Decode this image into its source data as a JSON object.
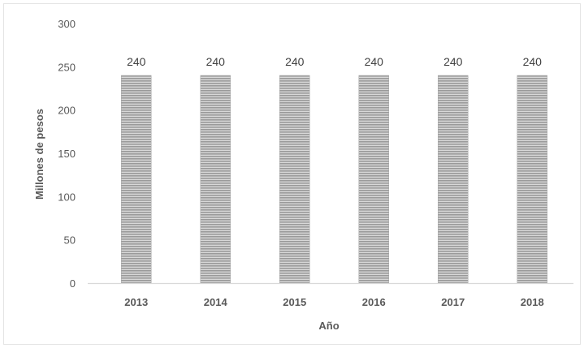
{
  "chart_data": {
    "type": "bar",
    "title": "",
    "xlabel": "Año",
    "ylabel": "Millones de pesos",
    "categories": [
      "2013",
      "2014",
      "2015",
      "2016",
      "2017",
      "2018"
    ],
    "values": [
      240,
      240,
      240,
      240,
      240,
      240
    ],
    "data_labels": [
      "240",
      "240",
      "240",
      "240",
      "240",
      "240"
    ],
    "ylim": [
      0,
      300
    ],
    "yticks": [
      "0",
      "50",
      "100",
      "150",
      "200",
      "250",
      "300"
    ],
    "grid": false,
    "legend": "none",
    "bar_color": "#b8b8b8",
    "bar_pattern": "horizontal-lines",
    "axis_color": "#d9d9d9"
  }
}
